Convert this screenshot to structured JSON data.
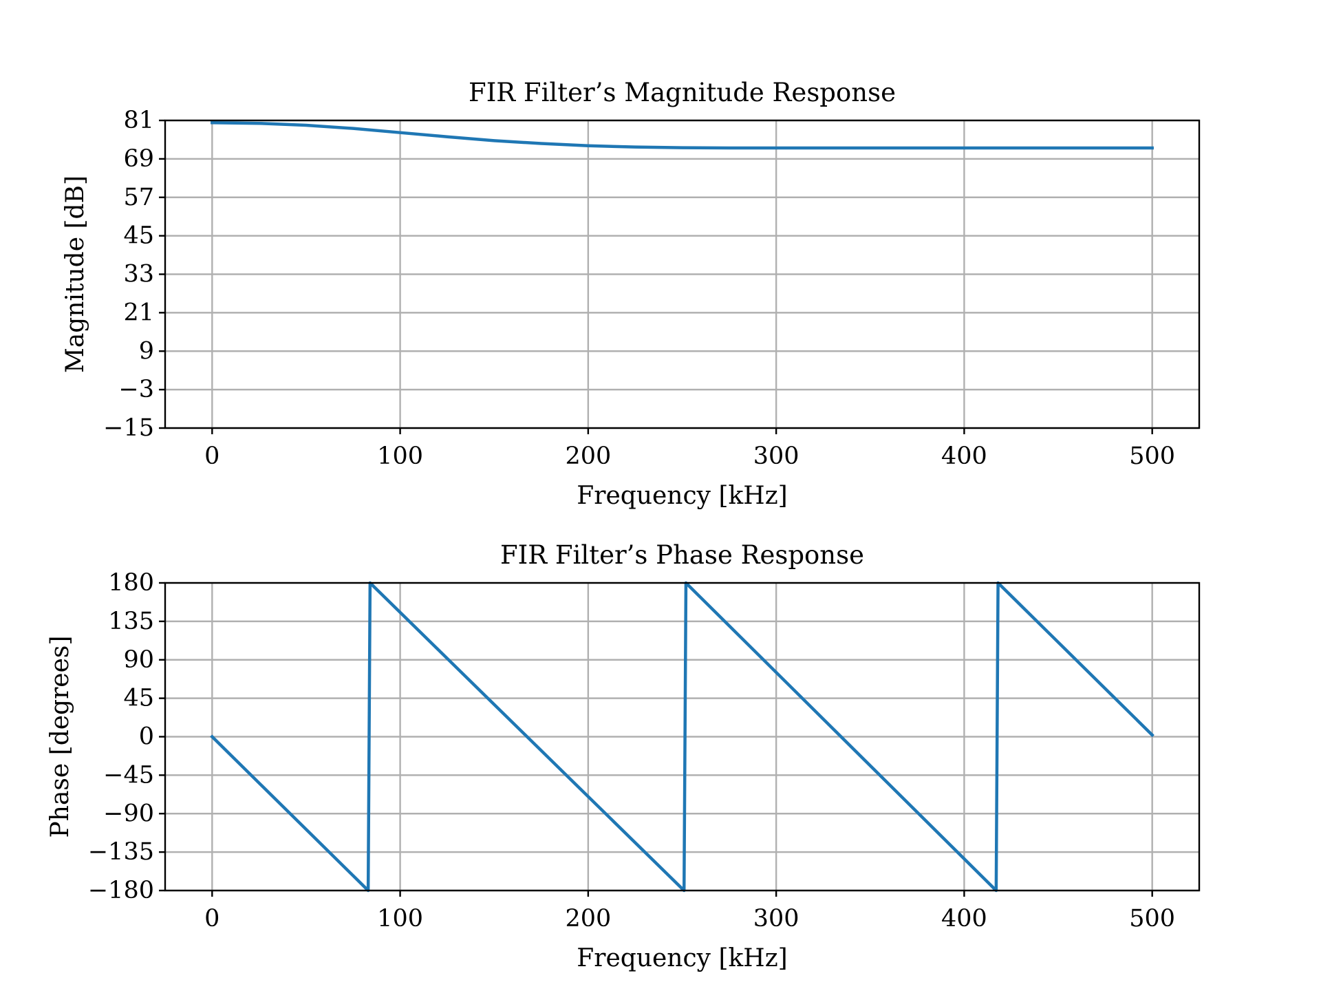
{
  "chart_data": [
    {
      "type": "line",
      "title": "FIR Filter’s Magnitude Response",
      "xlabel": "Frequency [kHz]",
      "ylabel": "Magnitude [dB]",
      "xlim": [
        -25,
        525
      ],
      "ylim": [
        -15,
        81
      ],
      "xticks": [
        0,
        100,
        200,
        300,
        400,
        500
      ],
      "xtick_labels": [
        "0",
        "100",
        "200",
        "300",
        "400",
        "500"
      ],
      "yticks": [
        -15,
        -3,
        9,
        21,
        33,
        45,
        57,
        69,
        81
      ],
      "ytick_labels": [
        "−15",
        "−3",
        "9",
        "21",
        "33",
        "45",
        "57",
        "69",
        "81"
      ],
      "grid": true,
      "series": [
        {
          "color": "#1f77b4",
          "x": [
            0,
            25,
            50,
            75,
            100,
            125,
            150,
            175,
            200,
            225,
            250,
            275,
            300,
            350,
            400,
            450,
            500
          ],
          "y": [
            80.3,
            80.1,
            79.5,
            78.5,
            77.2,
            75.9,
            74.7,
            73.8,
            73.1,
            72.7,
            72.5,
            72.4,
            72.4,
            72.4,
            72.4,
            72.4,
            72.4
          ]
        }
      ]
    },
    {
      "type": "line",
      "title": "FIR Filter’s Phase Response",
      "xlabel": "Frequency [kHz]",
      "ylabel": "Phase [degrees]",
      "xlim": [
        -25,
        525
      ],
      "ylim": [
        -180,
        180
      ],
      "xticks": [
        0,
        100,
        200,
        300,
        400,
        500
      ],
      "xtick_labels": [
        "0",
        "100",
        "200",
        "300",
        "400",
        "500"
      ],
      "yticks": [
        -180,
        -135,
        -90,
        -45,
        0,
        45,
        90,
        135,
        180
      ],
      "ytick_labels": [
        "−180",
        "−135",
        "−90",
        "−45",
        "0",
        "45",
        "90",
        "135",
        "180"
      ],
      "grid": true,
      "series": [
        {
          "color": "#1f77b4",
          "x": [
            0,
            83,
            84,
            251,
            252,
            417,
            418,
            500
          ],
          "y": [
            0,
            -180,
            180,
            -180,
            180,
            -180,
            180,
            2
          ]
        }
      ]
    }
  ]
}
